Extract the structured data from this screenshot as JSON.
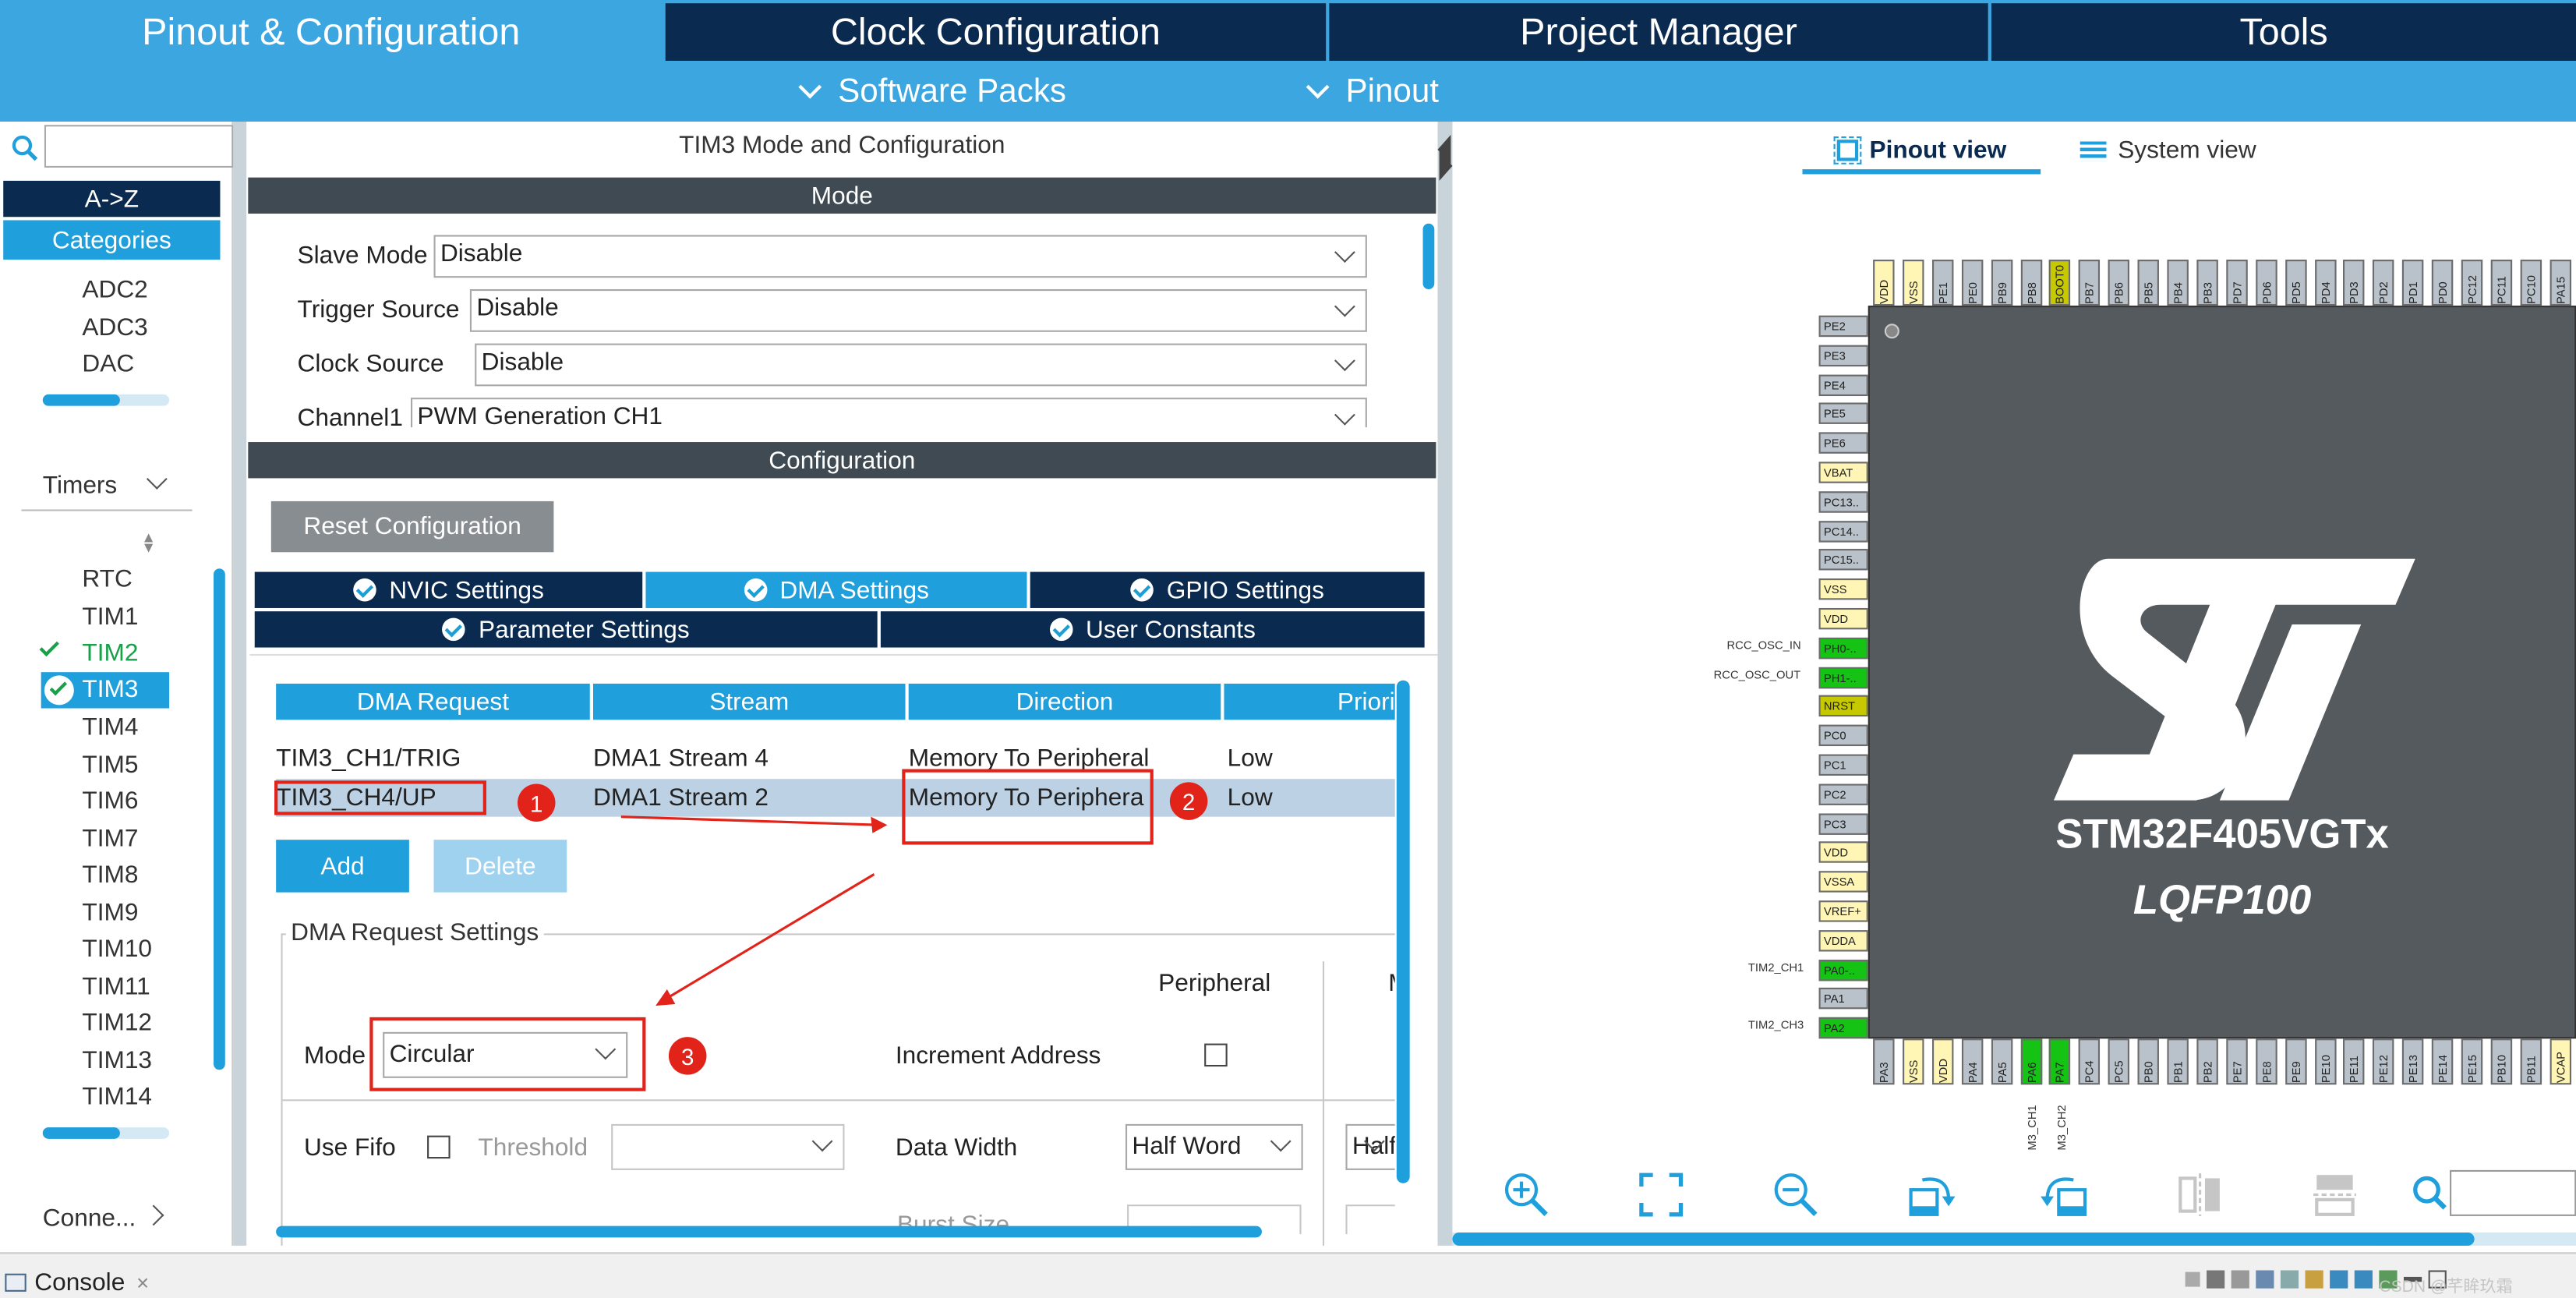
{
  "top_tabs": [
    "Pinout & Configuration",
    "Clock Configuration",
    "Project Manager",
    "Tools"
  ],
  "sub_menu": [
    "Software Packs",
    "Pinout"
  ],
  "left": {
    "search_placeholder": "",
    "az_label": "A->Z",
    "categories_label": "Categories",
    "analog_items": [
      "ADC2",
      "ADC3",
      "DAC"
    ],
    "timers_label": "Timers",
    "timer_items": [
      "RTC",
      "TIM1",
      "TIM2",
      "TIM3",
      "TIM4",
      "TIM5",
      "TIM6",
      "TIM7",
      "TIM8",
      "TIM9",
      "TIM10",
      "TIM11",
      "TIM12",
      "TIM13",
      "TIM14"
    ],
    "connectivity_label": "Conne..."
  },
  "mode": {
    "window_title": "TIM3 Mode and Configuration",
    "section_title": "Mode",
    "fields": [
      {
        "label": "Slave Mode",
        "value": "Disable"
      },
      {
        "label": "Trigger Source",
        "value": "Disable"
      },
      {
        "label": "Clock Source",
        "value": "Disable"
      },
      {
        "label": "Channel1",
        "value": "PWM Generation CH1"
      }
    ]
  },
  "config": {
    "section_title": "Configuration",
    "reset_label": "Reset Configuration",
    "tabs_row1": [
      "NVIC Settings",
      "DMA Settings",
      "GPIO Settings"
    ],
    "tabs_row2": [
      "Parameter Settings",
      "User Constants"
    ],
    "table": {
      "headers": [
        "DMA Request",
        "Stream",
        "Direction",
        "Priori"
      ],
      "rows": [
        [
          "TIM3_CH1/TRIG",
          "DMA1 Stream 4",
          "Memory To Peripheral",
          "Low"
        ],
        [
          "TIM3_CH4/UP",
          "DMA1 Stream 2",
          "Memory To Periphera",
          "Low"
        ]
      ]
    },
    "add_label": "Add",
    "delete_label": "Delete",
    "request_settings_title": "DMA Request Settings",
    "peripheral_label": "Peripheral",
    "memory_col_label": "M",
    "mode_label": "Mode",
    "mode_value": "Circular",
    "increment_label": "Increment Address",
    "use_fifo_label": "Use Fifo",
    "threshold_label": "Threshold",
    "threshold_value": "",
    "data_width_label": "Data Width",
    "data_width_value": "Half Word",
    "data_width_memory": "Half",
    "burst_label": "Burst Size",
    "annotations": [
      "1",
      "2",
      "3"
    ]
  },
  "pinout": {
    "pinout_view_label": "Pinout view",
    "system_view_label": "System view",
    "chip_name": "STM32F405VGTx",
    "package": "LQFP100",
    "left_pins": [
      "PE2",
      "PE3",
      "PE4",
      "PE5",
      "PE6",
      "VBAT",
      "PC13..",
      "PC14..",
      "PC15..",
      "VSS",
      "VDD",
      "PH0-..",
      "PH1-..",
      "NRST",
      "PC0",
      "PC1",
      "PC2",
      "PC3",
      "VDD",
      "VSSA",
      "VREF+",
      "VDDA",
      "PA0-..",
      "PA1",
      "PA2"
    ],
    "left_signals": [
      {
        "pin": "PH0-..",
        "text": "RCC_OSC_IN"
      },
      {
        "pin": "PH1-..",
        "text": "RCC_OSC_OUT"
      },
      {
        "pin": "PA0-..",
        "text": "TIM2_CH1"
      },
      {
        "pin": "PA2",
        "text": "TIM2_CH3"
      }
    ],
    "top_pins": [
      "VDD",
      "VSS",
      "PE1",
      "PE0",
      "PB9",
      "PB8",
      "BOOT0",
      "PB7",
      "PB6",
      "PB5",
      "PB4",
      "PB3",
      "PD7",
      "PD6",
      "PD5",
      "PD4",
      "PD3",
      "PD2",
      "PD1",
      "PD0",
      "PC12",
      "PC11",
      "PC10",
      "PA15"
    ],
    "bottom_pins": [
      "PA3",
      "VSS",
      "VDD",
      "PA4",
      "PA5",
      "PA6",
      "PA7",
      "PC4",
      "PC5",
      "PB0",
      "PB1",
      "PB2",
      "PE7",
      "PE8",
      "PE9",
      "PE10",
      "PE11",
      "PE12",
      "PE13",
      "PE14",
      "PE15",
      "PB10",
      "PB11",
      "VCAP"
    ],
    "bottom_signals": [
      "M3_CH1",
      "M3_CH2"
    ],
    "toolbar_icons": [
      "zoom-in-icon",
      "fit-screen-icon",
      "zoom-out-icon",
      "rotate-right-icon",
      "rotate-left-icon",
      "flip-vertical-icon",
      "flip-horizontal-icon",
      "search-icon"
    ]
  },
  "console": {
    "label": "Console",
    "close": "×"
  },
  "watermark": "CSDN @芊眸玖霜",
  "colors": {
    "accent": "#1f9fdc",
    "dark_tab": "#0b2a50",
    "pin_green": "#14c314",
    "pin_yellow": "#fff5b5",
    "pin_olive": "#c6c900",
    "pin_gray": "#b9c2ca",
    "chip_body": "#555a5f",
    "mark_red": "#e2231a"
  }
}
